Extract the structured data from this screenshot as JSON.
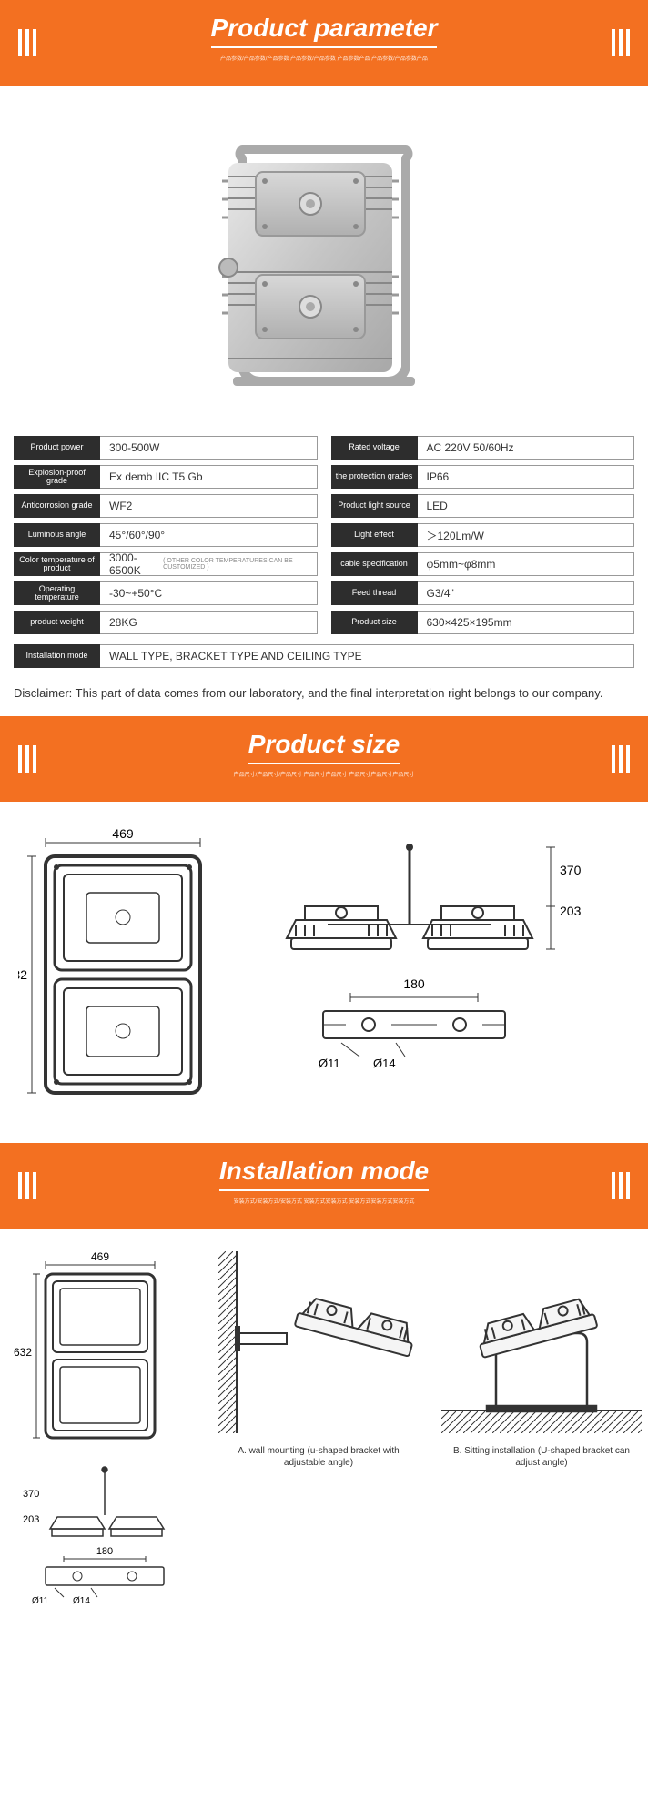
{
  "banners": {
    "param": {
      "title": "Product parameter",
      "sub": "产品参数/产品参数/产品参数 产品参数/产品参数 产品参数产品 产品参数/产品参数产品"
    },
    "size": {
      "title": "Product size",
      "sub": "产品尺寸/产品尺寸/产品尺寸 产品尺寸产品尺寸 产品尺寸产品尺寸产品尺寸"
    },
    "install": {
      "title": "Installation mode",
      "sub": "安装方式/安装方式/安装方式 安装方式安装方式 安装方式安装方式安装方式"
    }
  },
  "specs": {
    "left": [
      {
        "label": "Product power",
        "val": "300-500W"
      },
      {
        "label": "Explosion-proof grade",
        "val": "Ex demb IIC T5 Gb"
      },
      {
        "label": "Anticorrosion grade",
        "val": "WF2"
      },
      {
        "label": "Luminous angle",
        "val": "45°/60°/90°"
      },
      {
        "label": "Color temperature of product",
        "val": "3000-6500K",
        "note": "( OTHER COLOR TEMPERATURES CAN BE CUSTOMIZED )"
      },
      {
        "label": "Operating temperature",
        "val": "-30~+50°C"
      },
      {
        "label": "product weight",
        "val": "28KG"
      }
    ],
    "right": [
      {
        "label": "Rated voltage",
        "val": "AC 220V  50/60Hz"
      },
      {
        "label": "the protection grades",
        "val": "IP66"
      },
      {
        "label": "Product light source",
        "val": "LED"
      },
      {
        "label": "Light effect",
        "val": "＞120Lm/W"
      },
      {
        "label": "cable specification",
        "val": "φ5mm~φ8mm"
      },
      {
        "label": "Feed thread",
        "val": "G3/4\""
      },
      {
        "label": "Product size",
        "val": "630×425×195mm"
      }
    ],
    "full": {
      "label": "Installation mode",
      "val": "WALL TYPE, BRACKET TYPE AND CEILING TYPE"
    }
  },
  "disclaimer": "Disclaimer: This part of data comes from our laboratory, and the final interpretation right belongs to our company.",
  "dims": {
    "front_w": "469",
    "front_h": "632",
    "side_h1": "370",
    "side_h2": "203",
    "base_w": "180",
    "base_d1": "Ø11",
    "base_d2": "Ø14"
  },
  "install": {
    "capA": "A. wall mounting (u-shaped bracket with adjustable angle)",
    "capB": "B. Sitting installation (U-shaped bracket can adjust angle)"
  },
  "colors": {
    "orange": "#f37021",
    "dark": "#2d2d2d"
  }
}
